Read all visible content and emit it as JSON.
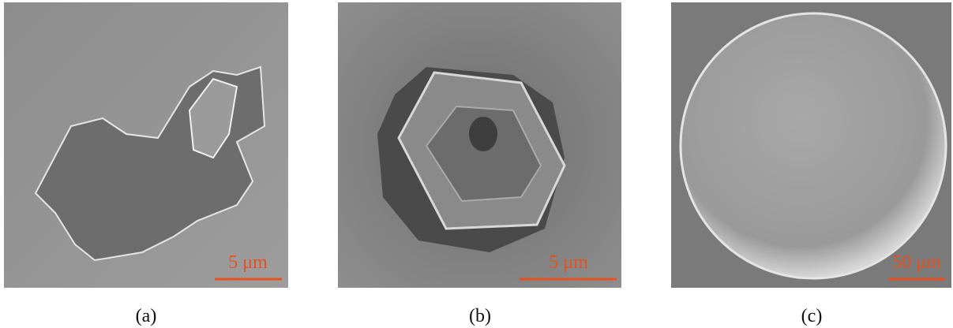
{
  "panels": [
    {
      "caption": "(a)",
      "scale_label": "5 μm"
    },
    {
      "caption": "(b)",
      "scale_label": "5 μm"
    },
    {
      "caption": "(c)",
      "scale_label": "50 μm"
    }
  ]
}
